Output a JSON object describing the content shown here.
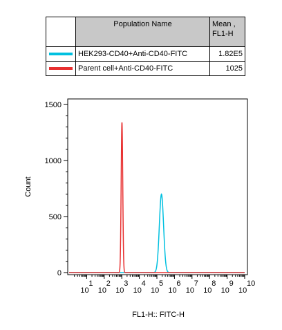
{
  "legend": {
    "header_name": "Population Name",
    "header_mean": "Mean ,\nFL1-H",
    "rows": [
      {
        "name": "HEK293-CD40+Anti-CD40-FITC",
        "mean": "1.82E5",
        "color": "#00c0e0"
      },
      {
        "name": "Parent cell+Anti-CD40-FITC",
        "mean": "1025",
        "color": "#e83030"
      }
    ]
  },
  "chart_data": {
    "type": "histogram",
    "xlabel": "FL1-H:: FITC-H",
    "ylabel": "Count",
    "x_scale": "log",
    "xlim_exponent": [
      0,
      10
    ],
    "x_tick_base": "10",
    "x_tick_exponents": [
      "1",
      "2",
      "3",
      "4",
      "5",
      "6",
      "7",
      "8",
      "9",
      "10"
    ],
    "ylim": [
      0,
      1550
    ],
    "y_ticks": [
      0,
      500,
      1000,
      1500
    ],
    "y_tick_labels": [
      "0",
      "500",
      "1000",
      "1500"
    ],
    "series": [
      {
        "name": "HEK293-CD40+Anti-CD40-FITC",
        "color": "#00c0e0",
        "peak_log10_x": 5.26,
        "peak_count": 700,
        "width_log10": 0.12
      },
      {
        "name": "Parent cell+Anti-CD40-FITC",
        "color": "#e83030",
        "peak_log10_x": 3.01,
        "peak_count": 1340,
        "width_log10": 0.045
      }
    ]
  }
}
